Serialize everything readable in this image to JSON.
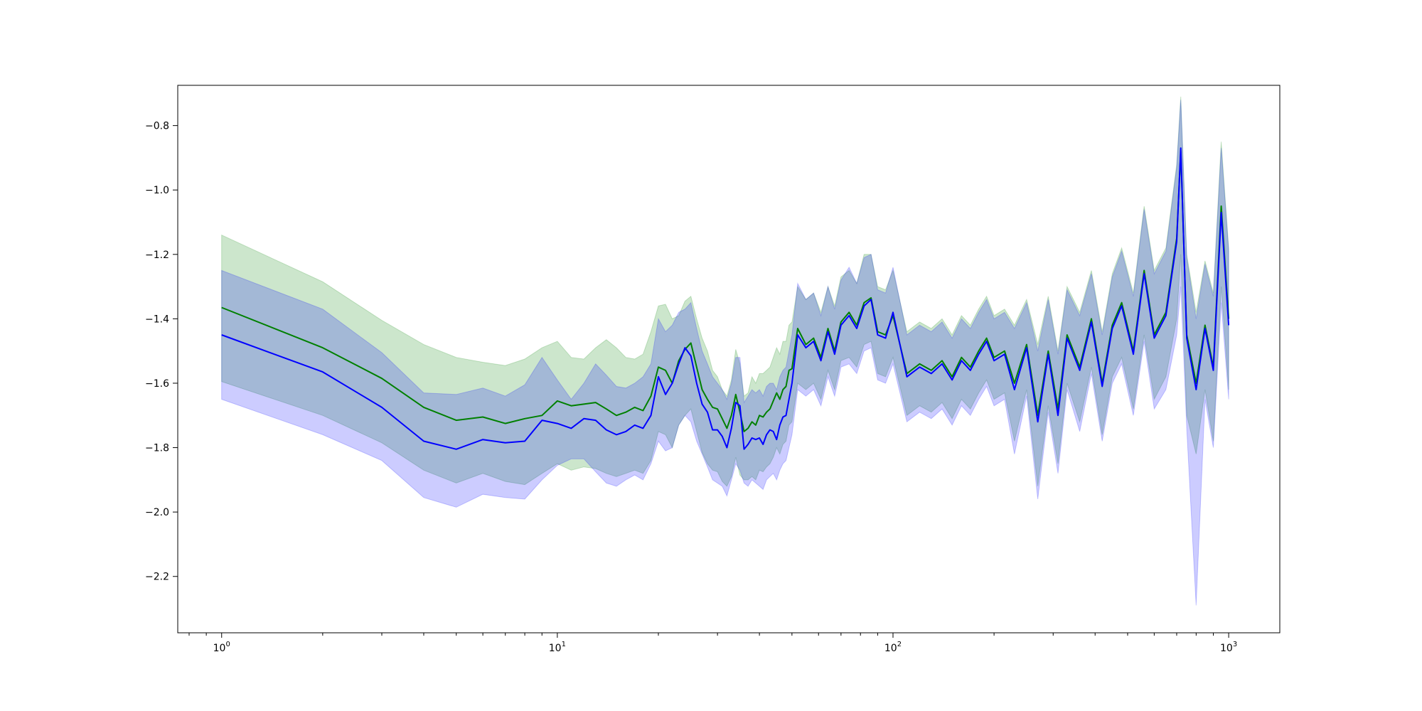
{
  "chart_data": {
    "type": "line",
    "title": "",
    "xlabel": "",
    "ylabel": "",
    "x_scale": "log",
    "xlim": [
      0.74,
      1420
    ],
    "ylim": [
      -2.375,
      -0.675
    ],
    "grid": false,
    "legend": "none",
    "x_ticks": [
      {
        "value": 1,
        "base": "10",
        "exp": "0"
      },
      {
        "value": 10,
        "base": "10",
        "exp": "1"
      },
      {
        "value": 100,
        "base": "10",
        "exp": "2"
      },
      {
        "value": 1000,
        "base": "10",
        "exp": "3"
      }
    ],
    "y_ticks": [
      {
        "value": -0.8,
        "label": "−0.8"
      },
      {
        "value": -1.0,
        "label": "−1.0"
      },
      {
        "value": -1.2,
        "label": "−1.2"
      },
      {
        "value": -1.4,
        "label": "−1.4"
      },
      {
        "value": -1.6,
        "label": "−1.6"
      },
      {
        "value": -1.8,
        "label": "−1.8"
      },
      {
        "value": -2.0,
        "label": "−2.0"
      },
      {
        "value": -2.2,
        "label": "−2.2"
      }
    ],
    "series": [
      {
        "color": "#008000",
        "band_color": "#008000",
        "band_opacity": 0.2,
        "x": [
          1,
          2,
          3,
          4,
          5,
          6,
          7,
          8,
          9,
          10,
          11,
          12,
          13,
          14,
          15,
          16,
          17,
          18,
          19,
          20,
          21,
          22,
          23,
          24,
          25,
          26,
          27,
          28,
          29,
          30,
          31,
          32,
          33,
          34,
          35,
          36,
          37,
          38,
          39,
          40,
          41,
          42,
          43,
          44,
          45,
          46,
          47,
          48,
          49,
          50,
          52,
          55,
          58,
          61,
          64,
          67,
          70,
          74,
          78,
          82,
          86,
          90,
          95,
          100,
          110,
          120,
          130,
          140,
          150,
          160,
          170,
          180,
          190,
          200,
          215,
          230,
          250,
          270,
          290,
          310,
          330,
          360,
          390,
          420,
          450,
          480,
          520,
          560,
          600,
          650,
          700,
          720,
          750,
          800,
          850,
          900,
          950,
          1000
        ],
        "y": [
          -1.365,
          -1.49,
          -1.585,
          -1.675,
          -1.715,
          -1.705,
          -1.725,
          -1.71,
          -1.7,
          -1.655,
          -1.67,
          -1.665,
          -1.66,
          -1.68,
          -1.7,
          -1.69,
          -1.675,
          -1.685,
          -1.64,
          -1.55,
          -1.56,
          -1.6,
          -1.53,
          -1.495,
          -1.475,
          -1.55,
          -1.62,
          -1.65,
          -1.675,
          -1.68,
          -1.71,
          -1.74,
          -1.7,
          -1.635,
          -1.69,
          -1.75,
          -1.74,
          -1.72,
          -1.73,
          -1.7,
          -1.705,
          -1.69,
          -1.68,
          -1.655,
          -1.63,
          -1.65,
          -1.62,
          -1.61,
          -1.56,
          -1.555,
          -1.43,
          -1.48,
          -1.46,
          -1.52,
          -1.43,
          -1.5,
          -1.41,
          -1.38,
          -1.42,
          -1.35,
          -1.335,
          -1.44,
          -1.45,
          -1.39,
          -1.57,
          -1.54,
          -1.56,
          -1.53,
          -1.58,
          -1.52,
          -1.55,
          -1.5,
          -1.46,
          -1.52,
          -1.5,
          -1.6,
          -1.48,
          -1.7,
          -1.5,
          -1.68,
          -1.45,
          -1.55,
          -1.4,
          -1.6,
          -1.42,
          -1.35,
          -1.5,
          -1.25,
          -1.45,
          -1.38,
          -1.15,
          -0.88,
          -1.45,
          -1.6,
          -1.42,
          -1.55,
          -1.05,
          -1.4
        ],
        "lower": [
          -1.595,
          -1.7,
          -1.785,
          -1.87,
          -1.91,
          -1.88,
          -1.905,
          -1.915,
          -1.88,
          -1.85,
          -1.87,
          -1.86,
          -1.865,
          -1.88,
          -1.89,
          -1.88,
          -1.87,
          -1.88,
          -1.84,
          -1.75,
          -1.76,
          -1.8,
          -1.73,
          -1.7,
          -1.68,
          -1.75,
          -1.815,
          -1.85,
          -1.87,
          -1.875,
          -1.905,
          -1.92,
          -1.89,
          -1.83,
          -1.885,
          -1.9,
          -1.9,
          -1.89,
          -1.9,
          -1.87,
          -1.875,
          -1.86,
          -1.85,
          -1.83,
          -1.8,
          -1.82,
          -1.79,
          -1.78,
          -1.73,
          -1.72,
          -1.6,
          -1.62,
          -1.6,
          -1.65,
          -1.56,
          -1.62,
          -1.53,
          -1.52,
          -1.55,
          -1.48,
          -1.47,
          -1.57,
          -1.58,
          -1.52,
          -1.7,
          -1.67,
          -1.69,
          -1.66,
          -1.71,
          -1.65,
          -1.68,
          -1.63,
          -1.59,
          -1.65,
          -1.63,
          -1.78,
          -1.62,
          -1.92,
          -1.67,
          -1.85,
          -1.6,
          -1.72,
          -1.55,
          -1.76,
          -1.58,
          -1.52,
          -1.68,
          -1.45,
          -1.65,
          -1.58,
          -1.4,
          -1.2,
          -1.7,
          -1.82,
          -1.62,
          -1.78,
          -1.3,
          -1.62
        ],
        "upper": [
          -1.14,
          -1.285,
          -1.405,
          -1.48,
          -1.52,
          -1.535,
          -1.545,
          -1.525,
          -1.49,
          -1.47,
          -1.52,
          -1.525,
          -1.49,
          -1.465,
          -1.49,
          -1.52,
          -1.525,
          -1.51,
          -1.44,
          -1.36,
          -1.355,
          -1.4,
          -1.39,
          -1.345,
          -1.33,
          -1.4,
          -1.46,
          -1.5,
          -1.56,
          -1.58,
          -1.62,
          -1.64,
          -1.59,
          -1.495,
          -1.54,
          -1.64,
          -1.63,
          -1.58,
          -1.6,
          -1.57,
          -1.57,
          -1.56,
          -1.55,
          -1.52,
          -1.49,
          -1.51,
          -1.47,
          -1.47,
          -1.42,
          -1.41,
          -1.3,
          -1.34,
          -1.32,
          -1.38,
          -1.3,
          -1.36,
          -1.27,
          -1.25,
          -1.29,
          -1.2,
          -1.2,
          -1.3,
          -1.31,
          -1.25,
          -1.44,
          -1.41,
          -1.43,
          -1.4,
          -1.45,
          -1.39,
          -1.42,
          -1.37,
          -1.33,
          -1.39,
          -1.37,
          -1.42,
          -1.34,
          -1.48,
          -1.33,
          -1.5,
          -1.3,
          -1.38,
          -1.25,
          -1.44,
          -1.26,
          -1.18,
          -1.32,
          -1.05,
          -1.25,
          -1.18,
          -0.92,
          -0.71,
          -1.2,
          -1.38,
          -1.22,
          -1.32,
          -0.85,
          -1.18
        ]
      },
      {
        "color": "#0000ff",
        "band_color": "#0000ff",
        "band_opacity": 0.2,
        "x": [
          1,
          2,
          3,
          4,
          5,
          6,
          7,
          8,
          9,
          10,
          11,
          12,
          13,
          14,
          15,
          16,
          17,
          18,
          19,
          20,
          21,
          22,
          23,
          24,
          25,
          26,
          27,
          28,
          29,
          30,
          31,
          32,
          33,
          34,
          35,
          36,
          37,
          38,
          39,
          40,
          41,
          42,
          43,
          44,
          45,
          46,
          47,
          48,
          49,
          50,
          52,
          55,
          58,
          61,
          64,
          67,
          70,
          74,
          78,
          82,
          86,
          90,
          95,
          100,
          110,
          120,
          130,
          140,
          150,
          160,
          170,
          180,
          190,
          200,
          215,
          230,
          250,
          270,
          290,
          310,
          330,
          360,
          390,
          420,
          450,
          480,
          520,
          560,
          600,
          650,
          700,
          720,
          750,
          800,
          850,
          900,
          950,
          1000
        ],
        "y": [
          -1.45,
          -1.565,
          -1.675,
          -1.78,
          -1.805,
          -1.775,
          -1.785,
          -1.78,
          -1.715,
          -1.725,
          -1.74,
          -1.71,
          -1.715,
          -1.745,
          -1.76,
          -1.75,
          -1.73,
          -1.74,
          -1.7,
          -1.58,
          -1.635,
          -1.6,
          -1.54,
          -1.49,
          -1.515,
          -1.6,
          -1.665,
          -1.69,
          -1.745,
          -1.745,
          -1.765,
          -1.8,
          -1.74,
          -1.66,
          -1.67,
          -1.805,
          -1.79,
          -1.77,
          -1.775,
          -1.77,
          -1.79,
          -1.76,
          -1.745,
          -1.75,
          -1.775,
          -1.73,
          -1.705,
          -1.7,
          -1.65,
          -1.6,
          -1.45,
          -1.49,
          -1.47,
          -1.53,
          -1.44,
          -1.51,
          -1.42,
          -1.39,
          -1.43,
          -1.36,
          -1.34,
          -1.45,
          -1.46,
          -1.38,
          -1.58,
          -1.55,
          -1.57,
          -1.54,
          -1.59,
          -1.53,
          -1.56,
          -1.51,
          -1.47,
          -1.53,
          -1.51,
          -1.62,
          -1.49,
          -1.72,
          -1.51,
          -1.7,
          -1.46,
          -1.56,
          -1.41,
          -1.61,
          -1.43,
          -1.36,
          -1.51,
          -1.26,
          -1.46,
          -1.39,
          -1.16,
          -0.87,
          -1.46,
          -1.62,
          -1.43,
          -1.56,
          -1.07,
          -1.42
        ],
        "lower": [
          -1.65,
          -1.76,
          -1.84,
          -1.955,
          -1.985,
          -1.945,
          -1.955,
          -1.96,
          -1.9,
          -1.855,
          -1.835,
          -1.835,
          -1.875,
          -1.91,
          -1.92,
          -1.9,
          -1.885,
          -1.9,
          -1.85,
          -1.78,
          -1.81,
          -1.8,
          -1.73,
          -1.7,
          -1.72,
          -1.78,
          -1.82,
          -1.86,
          -1.9,
          -1.91,
          -1.92,
          -1.95,
          -1.9,
          -1.85,
          -1.87,
          -1.91,
          -1.92,
          -1.9,
          -1.91,
          -1.92,
          -1.93,
          -1.9,
          -1.89,
          -1.88,
          -1.9,
          -1.87,
          -1.85,
          -1.84,
          -1.8,
          -1.76,
          -1.62,
          -1.64,
          -1.62,
          -1.67,
          -1.58,
          -1.64,
          -1.55,
          -1.54,
          -1.57,
          -1.5,
          -1.49,
          -1.59,
          -1.6,
          -1.54,
          -1.72,
          -1.69,
          -1.71,
          -1.68,
          -1.73,
          -1.67,
          -1.7,
          -1.65,
          -1.61,
          -1.67,
          -1.65,
          -1.82,
          -1.64,
          -1.96,
          -1.69,
          -1.88,
          -1.62,
          -1.75,
          -1.57,
          -1.78,
          -1.6,
          -1.54,
          -1.7,
          -1.47,
          -1.68,
          -1.62,
          -1.45,
          -1.3,
          -1.74,
          -2.29,
          -1.65,
          -1.8,
          -1.35,
          -1.65
        ],
        "upper": [
          -1.25,
          -1.37,
          -1.505,
          -1.63,
          -1.635,
          -1.615,
          -1.64,
          -1.605,
          -1.52,
          -1.59,
          -1.65,
          -1.6,
          -1.54,
          -1.575,
          -1.61,
          -1.615,
          -1.6,
          -1.58,
          -1.54,
          -1.4,
          -1.44,
          -1.42,
          -1.38,
          -1.37,
          -1.35,
          -1.43,
          -1.5,
          -1.54,
          -1.58,
          -1.6,
          -1.62,
          -1.65,
          -1.6,
          -1.52,
          -1.52,
          -1.66,
          -1.64,
          -1.62,
          -1.63,
          -1.62,
          -1.64,
          -1.61,
          -1.6,
          -1.6,
          -1.62,
          -1.58,
          -1.56,
          -1.55,
          -1.5,
          -1.45,
          -1.29,
          -1.34,
          -1.32,
          -1.39,
          -1.3,
          -1.37,
          -1.28,
          -1.24,
          -1.29,
          -1.21,
          -1.2,
          -1.31,
          -1.32,
          -1.24,
          -1.45,
          -1.42,
          -1.44,
          -1.41,
          -1.46,
          -1.4,
          -1.43,
          -1.38,
          -1.34,
          -1.4,
          -1.38,
          -1.43,
          -1.35,
          -1.5,
          -1.34,
          -1.51,
          -1.31,
          -1.39,
          -1.26,
          -1.45,
          -1.27,
          -1.19,
          -1.33,
          -1.06,
          -1.26,
          -1.19,
          -0.93,
          -0.72,
          -1.21,
          -1.4,
          -1.23,
          -1.33,
          -0.87,
          -1.19
        ]
      }
    ]
  }
}
